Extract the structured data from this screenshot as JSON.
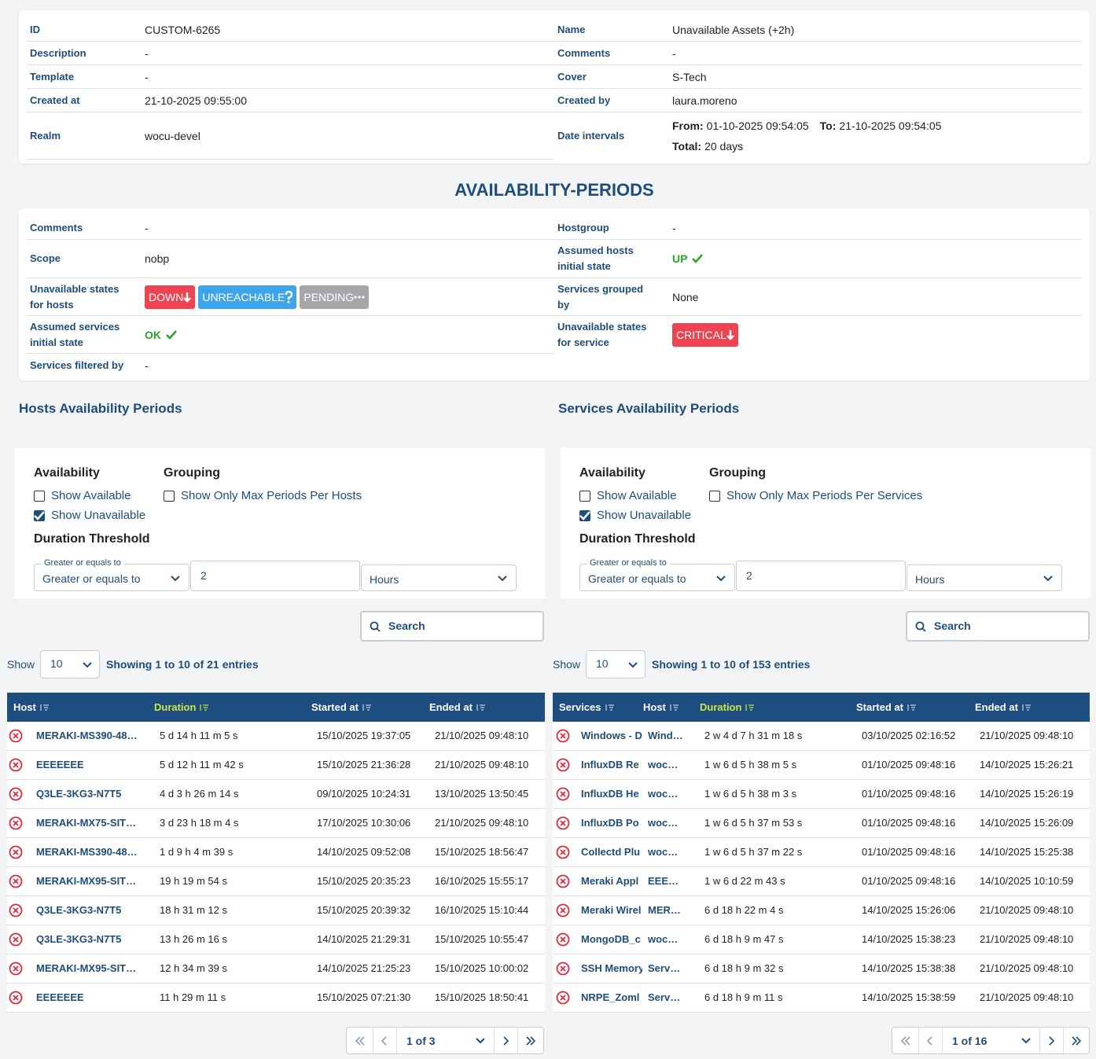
{
  "info": {
    "left": [
      {
        "label": "ID",
        "value": "CUSTOM-6265"
      },
      {
        "label": "Description",
        "value": "-"
      },
      {
        "label": "Template",
        "value": "-"
      },
      {
        "label": "Created at",
        "value": "21-10-2025 09:55:00"
      },
      {
        "label": "Realm",
        "value": "wocu-devel"
      }
    ],
    "right": [
      {
        "label": "Name",
        "value": "Unavailable Assets (+2h)"
      },
      {
        "label": "Comments",
        "value": "-"
      },
      {
        "label": "Cover",
        "value": "S-Tech"
      },
      {
        "label": "Created by",
        "value": "laura.moreno"
      },
      {
        "label": "Date intervals",
        "from_label": "From:",
        "from": "01-10-2025 09:54:05",
        "to_label": "To:",
        "to": "21-10-2025 09:54:05",
        "total_label": "Total:",
        "total": "20 days"
      }
    ]
  },
  "section_title": "AVAILABILITY-PERIODS",
  "config": {
    "left": [
      {
        "label": "Comments",
        "value": "-"
      },
      {
        "label": "Scope",
        "value": "nobp"
      },
      {
        "label": "Unavailable states for hosts",
        "badges": [
          {
            "text": "DOWN",
            "color": "#ee4451"
          },
          {
            "text": "UNREACHABLE",
            "color": "#3fa5ea"
          },
          {
            "text": "PENDING",
            "color": "#a5a7aa"
          }
        ]
      },
      {
        "label": "Assumed services initial state",
        "status": "OK"
      },
      {
        "label": "Services filtered by",
        "value": "-"
      }
    ],
    "right": [
      {
        "label": "Hostgroup",
        "value": "-"
      },
      {
        "label": "Assumed hosts initial state",
        "status": "UP"
      },
      {
        "label": "Services grouped by",
        "value": "None"
      },
      {
        "label": "Unavailable states for service",
        "badges": [
          {
            "text": "CRITICAL",
            "color": "#ee4451"
          }
        ]
      }
    ]
  },
  "panels": [
    {
      "title": "Hosts Availability Periods",
      "availability_label": "Availability",
      "show_available": "Show Available",
      "show_available_checked": false,
      "show_unavailable": "Show Unavailable",
      "show_unavailable_checked": true,
      "grouping_label": "Grouping",
      "group_option": "Show Only Max Periods Per Hosts",
      "group_option_checked": false,
      "threshold_label": "Duration Threshold",
      "operator_label": "Greater or equals to",
      "operator": "Greater or equals to",
      "threshold_value": "2",
      "unit": "Hours",
      "search": "Search",
      "show_label": "Show",
      "page_size": "10",
      "showing": [
        "Showing",
        "1",
        "to",
        "10",
        "of",
        "21",
        "entries"
      ],
      "sorted_column": 1,
      "columns": [
        "Host",
        "Duration",
        "Started at",
        "Ended at"
      ],
      "rows": [
        [
          "MERAKI-MS390-48…",
          "5 d 14 h 11 m 5 s",
          "15/10/2025 19:37:05",
          "21/10/2025 09:48:10"
        ],
        [
          "EEEEEEE",
          "5 d 12 h 11 m 42 s",
          "15/10/2025 21:36:28",
          "21/10/2025 09:48:10"
        ],
        [
          "Q3LE-3KG3-N7T5",
          "4 d 3 h 26 m 14 s",
          "09/10/2025 10:24:31",
          "13/10/2025 13:50:45"
        ],
        [
          "MERAKI-MX75-SIT…",
          "3 d 23 h 18 m 4 s",
          "17/10/2025 10:30:06",
          "21/10/2025 09:48:10"
        ],
        [
          "MERAKI-MS390-48…",
          "1 d 9 h 4 m 39 s",
          "14/10/2025 09:52:08",
          "15/10/2025 18:56:47"
        ],
        [
          "MERAKI-MX95-SIT…",
          "19 h 19 m 54 s",
          "15/10/2025 20:35:23",
          "16/10/2025 15:55:17"
        ],
        [
          "Q3LE-3KG3-N7T5",
          "18 h 31 m 12 s",
          "15/10/2025 20:39:32",
          "16/10/2025 15:10:44"
        ],
        [
          "Q3LE-3KG3-N7T5",
          "13 h 26 m 16 s",
          "14/10/2025 21:29:31",
          "15/10/2025 10:55:47"
        ],
        [
          "MERAKI-MX95-SIT…",
          "12 h 34 m 39 s",
          "14/10/2025 21:25:23",
          "15/10/2025 10:00:02"
        ],
        [
          "EEEEEEE",
          "11 h 29 m 11 s",
          "15/10/2025 07:21:30",
          "15/10/2025 18:50:41"
        ]
      ],
      "page": "1 of 3"
    },
    {
      "title": "Services Availability Periods",
      "availability_label": "Availability",
      "show_available": "Show Available",
      "show_available_checked": false,
      "show_unavailable": "Show Unavailable",
      "show_unavailable_checked": true,
      "grouping_label": "Grouping",
      "group_option": "Show Only Max Periods Per Services",
      "group_option_checked": false,
      "threshold_label": "Duration Threshold",
      "operator_label": "Greater or equals to",
      "operator": "Greater or equals to",
      "threshold_value": "2",
      "unit": "Hours",
      "search": "Search",
      "show_label": "Show",
      "page_size": "10",
      "showing": [
        "Showing",
        "1",
        "to",
        "10",
        "of",
        "153",
        "entries"
      ],
      "sorted_column": 2,
      "columns": [
        "Services",
        "Host",
        "Duration",
        "Started at",
        "Ended at"
      ],
      "rows": [
        [
          "Windows - D",
          "Wind…",
          "2 w 4 d 7 h 31 m 18 s",
          "03/10/2025 02:16:52",
          "21/10/2025 09:48:10"
        ],
        [
          "InfluxDB Re",
          "woc…",
          "1 w 6 d 5 h 38 m 5 s",
          "01/10/2025 09:48:16",
          "14/10/2025 15:26:21"
        ],
        [
          "InfluxDB He",
          "woc…",
          "1 w 6 d 5 h 38 m 3 s",
          "01/10/2025 09:48:16",
          "14/10/2025 15:26:19"
        ],
        [
          "InfluxDB Po",
          "woc…",
          "1 w 6 d 5 h 37 m 53 s",
          "01/10/2025 09:48:16",
          "14/10/2025 15:26:09"
        ],
        [
          "Collectd Plu",
          "woc…",
          "1 w 6 d 5 h 37 m 22 s",
          "01/10/2025 09:48:16",
          "14/10/2025 15:25:38"
        ],
        [
          "Meraki Appl",
          "EEE…",
          "1 w 6 d 22 m 43 s",
          "01/10/2025 09:48:16",
          "14/10/2025 10:10:59"
        ],
        [
          "Meraki Wirel",
          "MER…",
          "6 d 18 h 22 m 4 s",
          "14/10/2025 15:26:06",
          "21/10/2025 09:48:10"
        ],
        [
          "MongoDB_c",
          "woc…",
          "6 d 18 h 9 m 47 s",
          "14/10/2025 15:38:23",
          "21/10/2025 09:48:10"
        ],
        [
          "SSH Memory",
          "Serv…",
          "6 d 18 h 9 m 32 s",
          "14/10/2025 15:38:38",
          "21/10/2025 09:48:10"
        ],
        [
          "NRPE_Zoml",
          "Serv…",
          "6 d 18 h 9 m 11 s",
          "14/10/2025 15:38:59",
          "21/10/2025 09:48:10"
        ]
      ],
      "page": "1 of 16"
    }
  ]
}
